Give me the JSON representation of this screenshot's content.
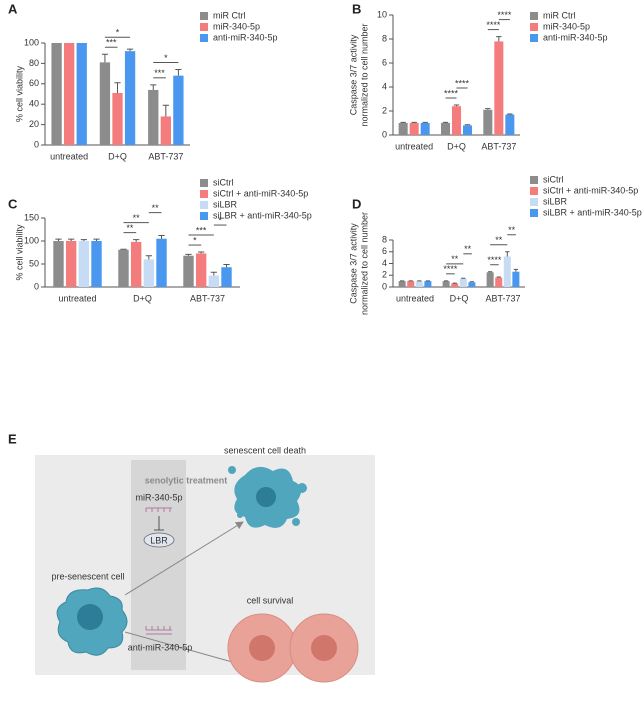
{
  "chart_data": [
    {
      "type": "bar",
      "panel": "A",
      "ylabel": "% cell viability",
      "categories": [
        "untreated",
        "D+Q",
        "ABT-737"
      ],
      "series": [
        {
          "name": "miR Ctrl",
          "color": "#8c8c8c",
          "values": [
            100,
            81,
            54
          ],
          "errors": [
            0,
            8,
            5
          ]
        },
        {
          "name": "miR-340-5p",
          "color": "#f47c7c",
          "values": [
            100,
            51,
            28
          ],
          "errors": [
            0,
            10,
            11
          ]
        },
        {
          "name": "anti-miR-340-5p",
          "color": "#4a97f0",
          "values": [
            100,
            92,
            68
          ],
          "errors": [
            0,
            2,
            6
          ]
        }
      ],
      "ylim": [
        0,
        100
      ],
      "yticks": [
        0,
        20,
        40,
        60,
        80,
        100
      ],
      "annotations": [
        {
          "category": 1,
          "between": [
            0,
            1
          ],
          "label": "***"
        },
        {
          "category": 1,
          "between": [
            0,
            2
          ],
          "label": "*"
        },
        {
          "category": 2,
          "between": [
            0,
            1
          ],
          "label": "***"
        },
        {
          "category": 2,
          "between": [
            0,
            2
          ],
          "label": "*"
        }
      ]
    },
    {
      "type": "bar",
      "panel": "B",
      "ylabel": [
        "Caspase 3/7 activity",
        "normalized to cell number"
      ],
      "categories": [
        "untreated",
        "D+Q",
        "ABT-737"
      ],
      "series": [
        {
          "name": "miR Ctrl",
          "color": "#8c8c8c",
          "values": [
            1,
            1.0,
            2.1
          ],
          "errors": [
            0.05,
            0.05,
            0.1
          ]
        },
        {
          "name": "miR-340-5p",
          "color": "#f47c7c",
          "values": [
            1,
            2.4,
            7.8
          ],
          "errors": [
            0.05,
            0.1,
            0.4
          ]
        },
        {
          "name": "anti-miR-340-5p",
          "color": "#4a97f0",
          "values": [
            1,
            0.8,
            1.7
          ],
          "errors": [
            0.05,
            0.05,
            0.05
          ]
        }
      ],
      "ylim": [
        0,
        10
      ],
      "yticks": [
        0,
        2,
        4,
        6,
        8,
        10
      ],
      "annotations": [
        {
          "category": 1,
          "between": [
            0,
            1
          ],
          "label": "****"
        },
        {
          "category": 1,
          "between": [
            1,
            2
          ],
          "label": "****"
        },
        {
          "category": 2,
          "between": [
            0,
            1
          ],
          "label": "****"
        },
        {
          "category": 2,
          "between": [
            1,
            2
          ],
          "label": "****"
        }
      ]
    },
    {
      "type": "bar",
      "panel": "C",
      "ylabel": "% cell viability",
      "categories": [
        "untreated",
        "D+Q",
        "ABT-737"
      ],
      "series": [
        {
          "name": "siCtrl",
          "color": "#8c8c8c",
          "values": [
            100,
            81,
            68
          ],
          "errors": [
            4,
            1,
            3
          ]
        },
        {
          "name": "siCtrl + anti-miR-340-5p",
          "color": "#f47c7c",
          "values": [
            100,
            98,
            73
          ],
          "errors": [
            4,
            5,
            3
          ]
        },
        {
          "name": "siLBR",
          "color": "#c5dcf4",
          "values": [
            100,
            60,
            25
          ],
          "errors": [
            3,
            8,
            7
          ]
        },
        {
          "name": "siLBR + anti-miR-340-5p",
          "color": "#4a97f0",
          "values": [
            100,
            105,
            43
          ],
          "errors": [
            4,
            7,
            6
          ]
        }
      ],
      "ylim": [
        0,
        150
      ],
      "yticks": [
        0,
        50,
        100,
        150
      ],
      "annotations": [
        {
          "category": 1,
          "between": [
            0,
            1
          ],
          "label": "**"
        },
        {
          "category": 1,
          "between": [
            0,
            2
          ],
          "label": "**"
        },
        {
          "category": 1,
          "between": [
            2,
            3
          ],
          "label": "**"
        },
        {
          "category": 2,
          "between": [
            0,
            1
          ],
          "label": "*"
        },
        {
          "category": 2,
          "between": [
            0,
            2
          ],
          "label": "***"
        },
        {
          "category": 2,
          "between": [
            2,
            3
          ],
          "label": "*"
        }
      ]
    },
    {
      "type": "bar",
      "panel": "D",
      "ylabel": [
        "Caspase 3/7 activity",
        "normalized to cell number"
      ],
      "categories": [
        "untreated",
        "D+Q",
        "ABT-737"
      ],
      "series": [
        {
          "name": "siCtrl",
          "color": "#8c8c8c",
          "values": [
            1,
            1.0,
            2.5
          ],
          "errors": [
            0.05,
            0.05,
            0.1
          ]
        },
        {
          "name": "siCtrl + anti-miR-340-5p",
          "color": "#f47c7c",
          "values": [
            1,
            0.6,
            1.6
          ],
          "errors": [
            0.05,
            0.05,
            0.1
          ]
        },
        {
          "name": "siLBR",
          "color": "#c5dcf4",
          "values": [
            1,
            1.4,
            5.2
          ],
          "errors": [
            0.05,
            0.1,
            0.8
          ]
        },
        {
          "name": "siLBR + anti-miR-340-5p",
          "color": "#4a97f0",
          "values": [
            1,
            0.8,
            2.6
          ],
          "errors": [
            0.05,
            0.1,
            0.4
          ]
        }
      ],
      "ylim": [
        0,
        8
      ],
      "yticks": [
        0,
        2,
        4,
        6,
        8
      ],
      "annotations": [
        {
          "category": 1,
          "between": [
            0,
            1
          ],
          "label": "****"
        },
        {
          "category": 1,
          "between": [
            0,
            2
          ],
          "label": "**"
        },
        {
          "category": 1,
          "between": [
            2,
            3
          ],
          "label": "**"
        },
        {
          "category": 2,
          "between": [
            0,
            1
          ],
          "label": "****"
        },
        {
          "category": 2,
          "between": [
            0,
            2
          ],
          "label": "**"
        },
        {
          "category": 2,
          "between": [
            2,
            3
          ],
          "label": "**"
        }
      ]
    }
  ],
  "diagram": {
    "panel": "E",
    "treatment": "senolytic treatment",
    "mirna": "miR-340-5p",
    "target": "LBR",
    "start": "pre-senescent cell",
    "death": "senescent cell death",
    "survival": "cell survival",
    "inhibitor": "anti-miR-340-5p"
  }
}
